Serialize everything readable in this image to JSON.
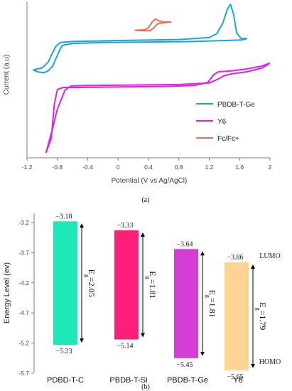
{
  "panel_a_label": "(a)",
  "panel_b_label": "(b)",
  "colors": {
    "PBDB-T-Ge": "#1aa3dc",
    "Y6": "#e020e6",
    "Fc/Fc+": "#f06a55",
    "axis": "#7f7f7f"
  },
  "chart_data": [
    {
      "type": "line",
      "xlabel": "Potential (V vs Ag/AgCl)",
      "ylabel": "Current (a.u)",
      "xlim": [
        -1.2,
        2.0
      ],
      "xticks": [
        "-1.2",
        "-0.8",
        "-0.4",
        "0",
        "0.4",
        "0.8",
        "1.2",
        "1.6",
        "2"
      ],
      "grid": false,
      "legend_position": "bottom-right",
      "legend": [
        "PBDB-T-Ge",
        "Y6",
        "Fc/Fc+"
      ],
      "series": [
        {
          "name": "PBDB-T-Ge",
          "color": "#1aa3dc",
          "curves": [
            [
              [
                -1.12,
                0.3
              ],
              [
                -1.0,
                0.32
              ],
              [
                -0.92,
                0.38
              ],
              [
                -0.86,
                0.48
              ],
              [
                -0.82,
                0.54
              ],
              [
                -0.76,
                0.58
              ],
              [
                -0.6,
                0.59
              ],
              [
                0.0,
                0.6
              ],
              [
                0.8,
                0.61
              ],
              [
                1.2,
                0.63
              ],
              [
                1.3,
                0.67
              ],
              [
                1.38,
                0.78
              ],
              [
                1.44,
                0.92
              ],
              [
                1.48,
                0.97
              ],
              [
                1.52,
                0.87
              ],
              [
                1.56,
                0.68
              ],
              [
                1.62,
                0.62
              ],
              [
                1.7,
                0.62
              ]
            ],
            [
              [
                1.7,
                0.62
              ],
              [
                1.62,
                0.605
              ],
              [
                1.4,
                0.6
              ],
              [
                1.0,
                0.59
              ],
              [
                0.4,
                0.585
              ],
              [
                -0.2,
                0.58
              ],
              [
                -0.6,
                0.57
              ],
              [
                -0.74,
                0.55
              ],
              [
                -0.8,
                0.45
              ],
              [
                -0.86,
                0.34
              ],
              [
                -0.92,
                0.29
              ],
              [
                -0.98,
                0.27
              ],
              [
                -1.06,
                0.28
              ],
              [
                -1.12,
                0.3
              ]
            ]
          ]
        },
        {
          "name": "Y6",
          "color": "#e020e6",
          "curves": [
            [
              [
                -0.95,
                -0.55
              ],
              [
                -0.88,
                -0.4
              ],
              [
                -0.84,
                -0.05
              ],
              [
                -0.8,
                0.1
              ],
              [
                -0.72,
                0.12
              ],
              [
                -0.5,
                0.12
              ],
              [
                0.0,
                0.125
              ],
              [
                0.6,
                0.13
              ],
              [
                1.0,
                0.14
              ],
              [
                1.18,
                0.17
              ],
              [
                1.26,
                0.25
              ],
              [
                1.32,
                0.28
              ],
              [
                1.5,
                0.29
              ],
              [
                1.7,
                0.31
              ],
              [
                1.9,
                0.34
              ],
              [
                2.0,
                0.37
              ]
            ],
            [
              [
                2.0,
                0.37
              ],
              [
                1.9,
                0.32
              ],
              [
                1.7,
                0.28
              ],
              [
                1.5,
                0.26
              ],
              [
                1.4,
                0.24
              ],
              [
                1.3,
                0.2
              ],
              [
                1.2,
                0.165
              ],
              [
                0.8,
                0.15
              ],
              [
                0.2,
                0.145
              ],
              [
                -0.4,
                0.14
              ],
              [
                -0.62,
                0.135
              ],
              [
                -0.7,
                0.09
              ],
              [
                -0.8,
                -0.1
              ],
              [
                -0.88,
                -0.35
              ],
              [
                -0.95,
                -0.55
              ]
            ]
          ]
        },
        {
          "name": "Fc/Fc+",
          "color": "#f06a55",
          "curves": [
            [
              [
                0.22,
                0.705
              ],
              [
                0.35,
                0.71
              ],
              [
                0.4,
                0.73
              ],
              [
                0.45,
                0.79
              ],
              [
                0.49,
                0.82
              ],
              [
                0.54,
                0.8
              ],
              [
                0.6,
                0.79
              ],
              [
                0.66,
                0.79
              ],
              [
                0.7,
                0.79
              ]
            ],
            [
              [
                0.7,
                0.79
              ],
              [
                0.58,
                0.78
              ],
              [
                0.52,
                0.77
              ],
              [
                0.47,
                0.73
              ],
              [
                0.42,
                0.7
              ],
              [
                0.36,
                0.7
              ],
              [
                0.22,
                0.705
              ]
            ]
          ]
        }
      ]
    },
    {
      "type": "bar",
      "ylabel": "Energy Level (ev)",
      "ylim": [
        -5.7,
        -3.2
      ],
      "yticks": [
        "-3.2",
        "-3.7",
        "-4.2",
        "-4.7",
        "-5.2",
        "-5.7"
      ],
      "categories": [
        "PDBD-T-C",
        "PBDB-T-Si",
        "PBDB-T-Ge",
        "Y6"
      ],
      "lumo": [
        -3.18,
        -3.33,
        -3.64,
        -3.86
      ],
      "homo": [
        -5.23,
        -5.14,
        -5.45,
        -5.65
      ],
      "lumo_labels": [
        "−3.18",
        "−3.33",
        "−3.64",
        "−3.86"
      ],
      "homo_labels": [
        "−5.23",
        "−5.14",
        "−5.45",
        "−5.65"
      ],
      "gap_labels": [
        "2.05",
        "1.81",
        "1.81",
        "1.79"
      ],
      "eg_symbol": "E",
      "eg_subscript": "g",
      "colors": [
        "#1de9b6",
        "#ff1f78",
        "#d53ed4",
        "#ffd591"
      ],
      "side_labels": {
        "top": "LUMO",
        "bottom": "HOMO"
      }
    }
  ]
}
